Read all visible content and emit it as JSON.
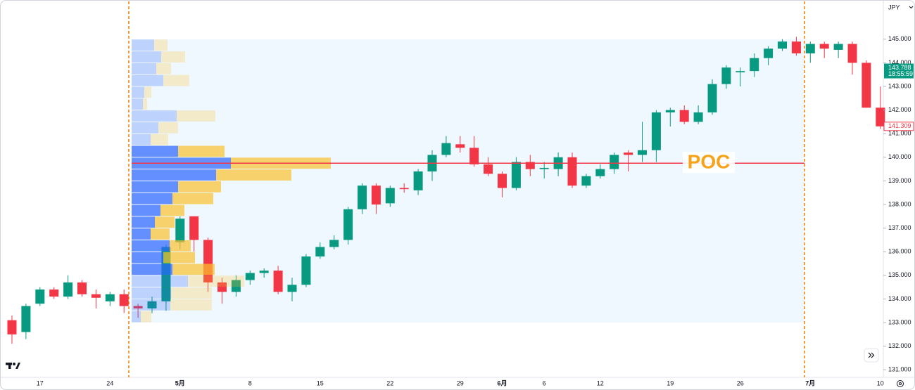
{
  "chart_data": {
    "type": "candlestick",
    "currency": "JPY",
    "categories": [
      null,
      null,
      "17",
      null,
      null,
      null,
      null,
      "24",
      null,
      null,
      null,
      null,
      "5月",
      null,
      null,
      null,
      null,
      "8",
      null,
      null,
      null,
      null,
      "15",
      null,
      null,
      null,
      null,
      "22",
      null,
      null,
      null,
      null,
      "29",
      null,
      null,
      "6月",
      null,
      null,
      "6",
      null,
      null,
      null,
      "12",
      null,
      null,
      null,
      null,
      "19",
      null,
      null,
      null,
      null,
      "26",
      null,
      null,
      null,
      null,
      "7月",
      null,
      null,
      null,
      null,
      "10"
    ],
    "open": [
      133.1,
      132.6,
      133.8,
      134.4,
      134.1,
      134.7,
      134.2,
      133.9,
      134.2,
      133.7,
      133.6,
      133.9,
      136.4,
      137.5,
      136.5,
      134.7,
      134.3,
      134.8,
      135.1,
      135.2,
      134.3,
      134.6,
      135.8,
      136.2,
      136.5,
      137.8,
      138.8,
      138.05,
      138.7,
      138.6,
      139.4,
      140.1,
      140.55,
      140.4,
      139.7,
      139.3,
      138.7,
      139.8,
      139.5,
      139.5,
      140.0,
      138.8,
      139.2,
      139.5,
      140.2,
      140.1,
      140.3,
      141.9,
      142.0,
      141.5,
      141.9,
      143.1,
      143.6,
      143.65,
      144.2,
      144.6,
      144.9,
      144.4,
      144.8,
      144.55,
      144.8,
      144.0,
      142.1
    ],
    "high": [
      133.3,
      133.8,
      134.5,
      134.5,
      135.0,
      134.8,
      134.4,
      134.3,
      134.4,
      133.8,
      134.1,
      136.3,
      137.5,
      137.5,
      136.6,
      134.9,
      135.0,
      135.2,
      135.3,
      135.4,
      134.9,
      135.9,
      136.4,
      136.7,
      137.9,
      138.9,
      138.9,
      138.8,
      138.9,
      139.5,
      140.3,
      140.9,
      140.9,
      140.9,
      140.0,
      139.4,
      140.0,
      140.1,
      139.8,
      140.2,
      140.2,
      139.3,
      139.7,
      140.2,
      140.3,
      141.5,
      142.0,
      142.1,
      142.2,
      142.2,
      143.3,
      143.9,
      143.8,
      144.4,
      144.7,
      145.0,
      145.1,
      144.9,
      144.9,
      144.9,
      144.9,
      144.1,
      143.0
    ],
    "low": [
      132.1,
      132.3,
      133.7,
      134.0,
      134.0,
      134.1,
      133.6,
      133.7,
      133.4,
      133.2,
      133.4,
      133.5,
      136.1,
      136.0,
      134.3,
      133.8,
      134.1,
      134.6,
      134.9,
      134.2,
      133.9,
      134.5,
      135.7,
      136.1,
      136.3,
      137.6,
      137.6,
      137.9,
      138.5,
      138.4,
      139.0,
      140.0,
      140.2,
      139.6,
      139.2,
      138.3,
      138.6,
      139.2,
      139.1,
      139.2,
      138.7,
      138.7,
      139.1,
      139.3,
      139.4,
      139.8,
      139.8,
      141.3,
      141.4,
      141.4,
      141.8,
      142.9,
      143.0,
      143.4,
      143.9,
      144.5,
      144.3,
      144.0,
      144.2,
      144.2,
      143.5,
      142.1,
      141.2
    ],
    "close": [
      132.5,
      133.7,
      134.4,
      134.1,
      134.7,
      134.2,
      134.05,
      134.2,
      133.7,
      133.6,
      133.9,
      136.2,
      137.4,
      136.5,
      134.7,
      134.3,
      134.8,
      135.1,
      135.2,
      134.3,
      134.6,
      135.8,
      136.2,
      136.5,
      137.8,
      138.8,
      138.0,
      138.7,
      138.65,
      139.4,
      140.1,
      140.6,
      140.4,
      139.7,
      139.3,
      138.7,
      139.8,
      139.5,
      139.55,
      140.0,
      138.8,
      139.2,
      139.5,
      140.1,
      140.1,
      140.3,
      141.9,
      142.0,
      141.5,
      141.9,
      143.1,
      143.8,
      143.65,
      144.2,
      144.6,
      144.9,
      144.4,
      144.8,
      144.6,
      144.8,
      144.0,
      142.1,
      141.31
    ],
    "up_color": "#089981",
    "down_color": "#f23645",
    "ylim": [
      130.68,
      146.66
    ],
    "yticks": [
      {
        "value": 131,
        "label": "131.000"
      },
      {
        "value": 132,
        "label": "132.000"
      },
      {
        "value": 133,
        "label": "133.000"
      },
      {
        "value": 134,
        "label": "134.000"
      },
      {
        "value": 135,
        "label": "135.000"
      },
      {
        "value": 136,
        "label": "136.000"
      },
      {
        "value": 137,
        "label": "137.000"
      },
      {
        "value": 138,
        "label": "138.000"
      },
      {
        "value": 139,
        "label": "139.000"
      },
      {
        "value": 140,
        "label": "140.000"
      },
      {
        "value": 141,
        "label": "141.000"
      },
      {
        "value": 142,
        "label": "142.000"
      },
      {
        "value": 143,
        "label": "143.000"
      },
      {
        "value": 144,
        "label": "144.000"
      },
      {
        "value": 145,
        "label": "145.000"
      }
    ],
    "volume_profile": {
      "bins": [
        133,
        133.5,
        134,
        134.5,
        135,
        135.5,
        136,
        136.5,
        137,
        137.5,
        138,
        138.5,
        139,
        139.5,
        140,
        140.5,
        141,
        141.5,
        142,
        142.5,
        143,
        143.5,
        144,
        144.5,
        145
      ],
      "up_volume": [
        13,
        55,
        56,
        80,
        58,
        45,
        54,
        27,
        33,
        41,
        58,
        66,
        120,
        141,
        66,
        27,
        38,
        64,
        16,
        18,
        45,
        35,
        42,
        32
      ],
      "down_volume": [
        15,
        59,
        58,
        80,
        60,
        45,
        30,
        27,
        28,
        34,
        58,
        61,
        107,
        142,
        66,
        25,
        28,
        55,
        6,
        10,
        37,
        21,
        34,
        19
      ],
      "up_color": "#2962ff",
      "down_color": "#fbc02d",
      "value_area": [
        135,
        140.5
      ],
      "poc": 139.75,
      "poc_label": "POC",
      "poc_color": "#f23645"
    },
    "price_labels": [
      {
        "value": 143.788,
        "label": "143.788",
        "time": "18:55:59",
        "color": "#089981"
      },
      {
        "value": 141.309,
        "label": "141.309",
        "color": "#f23645"
      }
    ]
  }
}
